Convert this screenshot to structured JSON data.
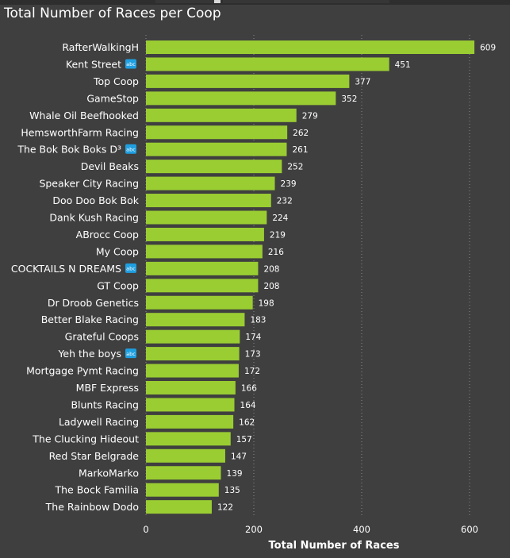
{
  "chart_data": {
    "type": "bar",
    "orientation": "horizontal",
    "title": "Total Number of Races per Coop",
    "xlabel": "Total Number of Races",
    "ylabel": "",
    "xlim": [
      0,
      630
    ],
    "xticks": [
      0,
      200,
      400,
      600
    ],
    "grid": "vertical dotted",
    "bar_color": "#9acd32",
    "categories": [
      "RafterWalkingH",
      "Kent Street",
      "Top Coop",
      "GameStop",
      "Whale Oil Beefhooked",
      "HemsworthFarm Racing",
      "The Bok Bok Boks D³",
      "Devil Beaks",
      "Speaker City Racing",
      "Doo Doo Bok Bok",
      "Dank Kush Racing",
      "ABrocc Coop",
      "My Coop",
      "COCKTAILS N DREAMS",
      "GT Coop",
      "Dr Droob Genetics",
      "Better Blake Racing",
      "Grateful Coops",
      "Yeh the boys",
      "Mortgage Pymt Racing",
      "MBF Express",
      "Blunts Racing",
      "Ladywell Racing",
      "The Clucking Hideout",
      "Red Star Belgrade",
      "MarkoMarko",
      "The Bock Familia",
      "The Rainbow Dodo"
    ],
    "values": [
      609,
      451,
      377,
      352,
      279,
      262,
      261,
      252,
      239,
      232,
      224,
      219,
      216,
      208,
      208,
      198,
      183,
      174,
      173,
      172,
      166,
      164,
      162,
      157,
      147,
      139,
      135,
      122
    ],
    "badge_categories": [
      "Kent Street",
      "The Bok Bok Boks D³",
      "COCKTAILS N DREAMS",
      "Yeh the boys"
    ],
    "badge_text": "abc",
    "badge_color": "#1f9fe0"
  }
}
